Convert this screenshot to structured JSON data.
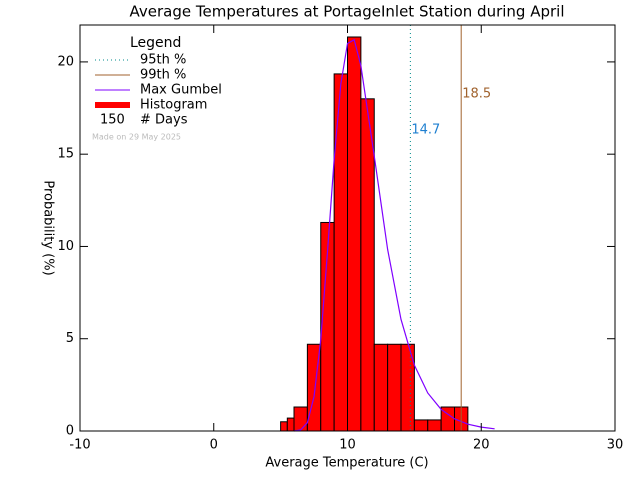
{
  "chart_data": {
    "type": "histogram",
    "title": "Average Temperatures at PortageInlet Station during April",
    "x_label": "Average Temperature (C)",
    "y_label": "Probability (%)",
    "name": "Histogram",
    "color": "#ff0000",
    "bins": [
      5,
      5.5,
      6,
      7,
      8,
      9,
      10,
      11,
      12,
      13,
      14,
      15,
      16,
      17,
      18,
      19
    ],
    "values": [
      0.5,
      0.7,
      1.3,
      4.7,
      11.3,
      19.35,
      21.35,
      18.0,
      4.7,
      4.7,
      4.7,
      0.6,
      0.6,
      1.3,
      1.3
    ],
    "xlim": [
      -10,
      30
    ],
    "ylim": [
      0,
      22
    ],
    "xticks": [
      -10,
      0,
      10,
      20,
      30
    ],
    "yticks": [
      0,
      5,
      10,
      15,
      20
    ],
    "lines": [
      {
        "name": "95th %",
        "value": 14.7,
        "color": "#008b8b",
        "label_color": "#1e7fd0",
        "style": "dotted"
      },
      {
        "name": "99th %",
        "value": 18.5,
        "color": "#a0622d",
        "label_color": "#a0622d",
        "style": "solid"
      }
    ],
    "curve": {
      "name": "Max Gumbel",
      "color": "#7f00ff",
      "x": [
        6,
        6.5,
        7,
        7.5,
        8,
        8.5,
        9,
        9.5,
        10,
        10.5,
        11,
        12,
        13,
        14,
        15,
        16,
        17,
        18,
        19,
        20,
        21
      ],
      "values": [
        0.0,
        0.06,
        0.45,
        1.87,
        4.95,
        9.67,
        14.7,
        18.8,
        21.0,
        21.2,
        19.8,
        14.9,
        9.84,
        6.05,
        3.57,
        2.06,
        1.17,
        0.66,
        0.37,
        0.21,
        0.12
      ]
    },
    "legend": {
      "title": "Legend",
      "days_count": 150,
      "days_label": "# Days"
    },
    "note": "Made on 29 May 2025"
  }
}
